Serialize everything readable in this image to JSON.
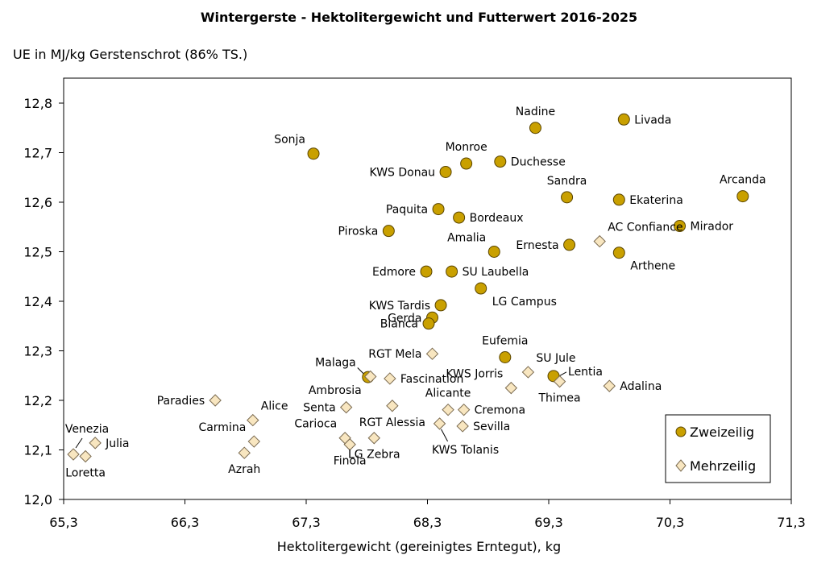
{
  "chart_data": {
    "type": "scatter",
    "title": "Wintergerste - Hektolitergewicht und Futterwert 2016-2025",
    "xlabel": "Hektolitergewicht (gereinigtes Erntegut), kg",
    "ylabel": "UE in MJ/kg Gerstenschrot (86% TS.)",
    "xlim": [
      65.3,
      71.3
    ],
    "ylim": [
      12.0,
      12.8
    ],
    "x_ticks": [
      "65,3",
      "66,3",
      "67,3",
      "68,3",
      "69,3",
      "70,3",
      "71,3"
    ],
    "y_ticks": [
      "12,0",
      "12,1",
      "12,2",
      "12,3",
      "12,4",
      "12,5",
      "12,6",
      "12,7",
      "12,8"
    ],
    "legend_position": "bottom-right",
    "series": [
      {
        "name": "Zweizeilig",
        "marker": "circle",
        "color": "#c9a000",
        "points": [
          {
            "label": "Nadine",
            "x": 69.19,
            "y": 12.75,
            "pos": "above"
          },
          {
            "label": "Livada",
            "x": 69.92,
            "y": 12.767,
            "pos": "right"
          },
          {
            "label": "Sonja",
            "x": 67.36,
            "y": 12.698,
            "pos": "left-up"
          },
          {
            "label": "Monroe",
            "x": 68.62,
            "y": 12.678,
            "pos": "above"
          },
          {
            "label": "Duchesse",
            "x": 68.9,
            "y": 12.682,
            "pos": "right"
          },
          {
            "label": "KWS Donau",
            "x": 68.45,
            "y": 12.661,
            "pos": "left"
          },
          {
            "label": "Sandra",
            "x": 69.45,
            "y": 12.61,
            "pos": "above"
          },
          {
            "label": "Ekaterina",
            "x": 69.88,
            "y": 12.605,
            "pos": "right"
          },
          {
            "label": "Arcanda",
            "x": 70.9,
            "y": 12.612,
            "pos": "above"
          },
          {
            "label": "Paquita",
            "x": 68.39,
            "y": 12.586,
            "pos": "left"
          },
          {
            "label": "Bordeaux",
            "x": 68.56,
            "y": 12.569,
            "pos": "right"
          },
          {
            "label": "Mirador",
            "x": 70.38,
            "y": 12.552,
            "pos": "right"
          },
          {
            "label": "Piroska",
            "x": 67.98,
            "y": 12.542,
            "pos": "left"
          },
          {
            "label": "Ernesta",
            "x": 69.47,
            "y": 12.514,
            "pos": "left"
          },
          {
            "label": "Amalia",
            "x": 68.85,
            "y": 12.5,
            "pos": "left-up"
          },
          {
            "label": "Arthene",
            "x": 69.88,
            "y": 12.498,
            "pos": "right-down"
          },
          {
            "label": "Edmore",
            "x": 68.29,
            "y": 12.46,
            "pos": "left"
          },
          {
            "label": "SU Laubella",
            "x": 68.5,
            "y": 12.46,
            "pos": "right"
          },
          {
            "label": "LG Campus",
            "x": 68.74,
            "y": 12.426,
            "pos": "right-down"
          },
          {
            "label": "KWS Tardis",
            "x": 68.41,
            "y": 12.392,
            "pos": "left"
          },
          {
            "label": "Gerda",
            "x": 68.34,
            "y": 12.367,
            "pos": "left"
          },
          {
            "label": "Bianca",
            "x": 68.31,
            "y": 12.355,
            "pos": "left"
          },
          {
            "label": "Eufemia",
            "x": 68.94,
            "y": 12.287,
            "pos": "above"
          },
          {
            "label": "Ambrosia",
            "x": 67.81,
            "y": 12.247,
            "pos": "left-down"
          },
          {
            "label": "Lentia",
            "x": 69.34,
            "y": 12.249,
            "pos": "right-leader"
          }
        ]
      },
      {
        "name": "Mehrzeilig",
        "marker": "diamond",
        "color": "#f8e6c0",
        "points": [
          {
            "label": "AC Confiance",
            "x": 69.72,
            "y": 12.521,
            "pos": "right-up"
          },
          {
            "label": "RGT Mela",
            "x": 68.34,
            "y": 12.294,
            "pos": "left"
          },
          {
            "label": "SU Jule",
            "x": 69.13,
            "y": 12.257,
            "pos": "right-up"
          },
          {
            "label": "Malaga",
            "x": 67.83,
            "y": 12.248,
            "pos": "left-up-leader"
          },
          {
            "label": "Fascination",
            "x": 67.99,
            "y": 12.244,
            "pos": "right"
          },
          {
            "label": "Adalina",
            "x": 69.8,
            "y": 12.229,
            "pos": "right"
          },
          {
            "label": "KWS Jorris",
            "x": 68.99,
            "y": 12.225,
            "pos": "left-up"
          },
          {
            "label": "Thimea",
            "x": 69.39,
            "y": 12.238,
            "pos": "below"
          },
          {
            "label": "Paradies",
            "x": 66.55,
            "y": 12.2,
            "pos": "left"
          },
          {
            "label": "Senta",
            "x": 67.63,
            "y": 12.186,
            "pos": "left"
          },
          {
            "label": "RGT Alessia",
            "x": 68.01,
            "y": 12.189,
            "pos": "below"
          },
          {
            "label": "Alicante",
            "x": 68.47,
            "y": 12.181,
            "pos": "above"
          },
          {
            "label": "Cremona",
            "x": 68.6,
            "y": 12.181,
            "pos": "right"
          },
          {
            "label": "Alice",
            "x": 66.86,
            "y": 12.16,
            "pos": "right-up"
          },
          {
            "label": "KWS Tolanis",
            "x": 68.4,
            "y": 12.153,
            "pos": "below-leader"
          },
          {
            "label": "Sevilla",
            "x": 68.59,
            "y": 12.148,
            "pos": "right"
          },
          {
            "label": "Carmina",
            "x": 66.87,
            "y": 12.117,
            "pos": "left-up"
          },
          {
            "label": "Carioca",
            "x": 67.62,
            "y": 12.124,
            "pos": "left-up"
          },
          {
            "label": "LG Zebra",
            "x": 67.86,
            "y": 12.124,
            "pos": "below"
          },
          {
            "label": "Finola",
            "x": 67.66,
            "y": 12.111,
            "pos": "below"
          },
          {
            "label": "Julia",
            "x": 65.56,
            "y": 12.114,
            "pos": "right"
          },
          {
            "label": "Azrah",
            "x": 66.79,
            "y": 12.094,
            "pos": "below"
          },
          {
            "label": "Venezia",
            "x": 65.38,
            "y": 12.091,
            "pos": "above-leader"
          },
          {
            "label": "Loretta",
            "x": 65.48,
            "y": 12.087,
            "pos": "below"
          }
        ]
      }
    ]
  }
}
